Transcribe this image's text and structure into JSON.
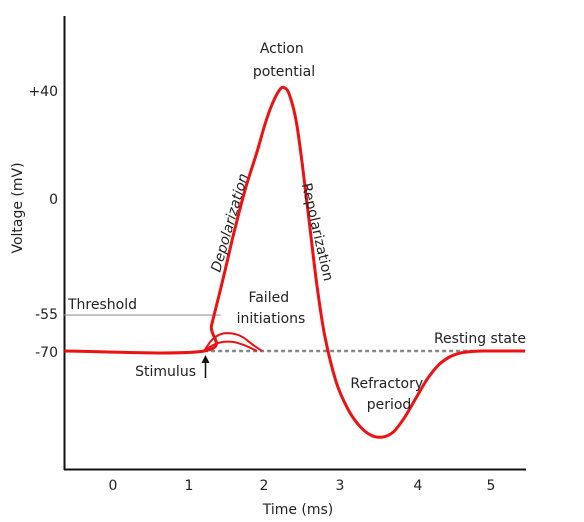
{
  "chart_data": {
    "type": "line",
    "title": "",
    "xlabel": "Time (ms)",
    "ylabel": "Voltage (mV)",
    "xlim": [
      -0.65,
      5.45
    ],
    "ylim": [
      -110,
      62
    ],
    "x_ticks": [
      0,
      1,
      2,
      3,
      4,
      5
    ],
    "x_tick_labels": [
      "0",
      "1",
      "2",
      "3",
      "4",
      "5"
    ],
    "y_ticks": [
      40,
      0,
      -55,
      -70
    ],
    "y_tick_labels": [
      "+40",
      "0",
      "-55",
      "-70"
    ],
    "grid": false,
    "colors": {
      "curve": "#ee1111",
      "axis": "#111111",
      "threshold": "#aaaaaa",
      "resting": "#888888"
    },
    "series": [
      {
        "name": "",
        "x": [
          -0.65,
          1.2,
          1.3,
          1.45,
          1.6,
          1.75,
          1.9,
          2.0,
          2.1,
          2.2,
          2.26,
          2.33,
          2.42,
          2.5,
          2.6,
          2.7,
          2.8,
          2.95,
          3.1,
          3.25,
          3.4,
          3.55,
          3.7,
          3.85,
          4.0,
          4.15,
          4.3,
          4.45,
          4.6,
          4.75,
          4.9,
          5.0,
          5.45
        ],
        "y": [
          -70,
          -70,
          -59,
          -40,
          -20,
          -2,
          13,
          24,
          33,
          39,
          40,
          37,
          26,
          8,
          -18,
          -44,
          -64,
          -83,
          -94,
          -101,
          -105,
          -106,
          -104,
          -98,
          -90,
          -82,
          -76,
          -72.5,
          -70.8,
          -70.2,
          -70,
          -70,
          -70
        ]
      }
    ],
    "failed_initiations": [
      {
        "x": [
          1.2,
          1.3,
          1.42,
          1.55,
          1.7,
          1.85,
          1.97
        ],
        "y": [
          -70,
          -65.5,
          -63,
          -62.6,
          -64,
          -67.5,
          -70
        ]
      },
      {
        "x": [
          1.2,
          1.32,
          1.45,
          1.6,
          1.75,
          1.9
        ],
        "y": [
          -70,
          -67.5,
          -66.2,
          -66.3,
          -67.8,
          -70
        ]
      }
    ],
    "reference_lines": [
      {
        "label": "Threshold",
        "y": -55,
        "x_start": -0.65,
        "x_end": 1.42
      },
      {
        "label": "Resting state",
        "y": -70,
        "x_start": 1.2,
        "x_end": 5.0,
        "style": "dashed"
      }
    ],
    "annotations": [
      {
        "text_lines": [
          "Action",
          "potential"
        ]
      },
      {
        "text": "Depolarization"
      },
      {
        "text": "Repolarization"
      },
      {
        "text_lines": [
          "Failed",
          "initiations"
        ]
      },
      {
        "text": "Threshold"
      },
      {
        "text": "Resting state"
      },
      {
        "text": "Stimulus"
      },
      {
        "text_lines": [
          "Refractory",
          "period"
        ]
      }
    ]
  }
}
